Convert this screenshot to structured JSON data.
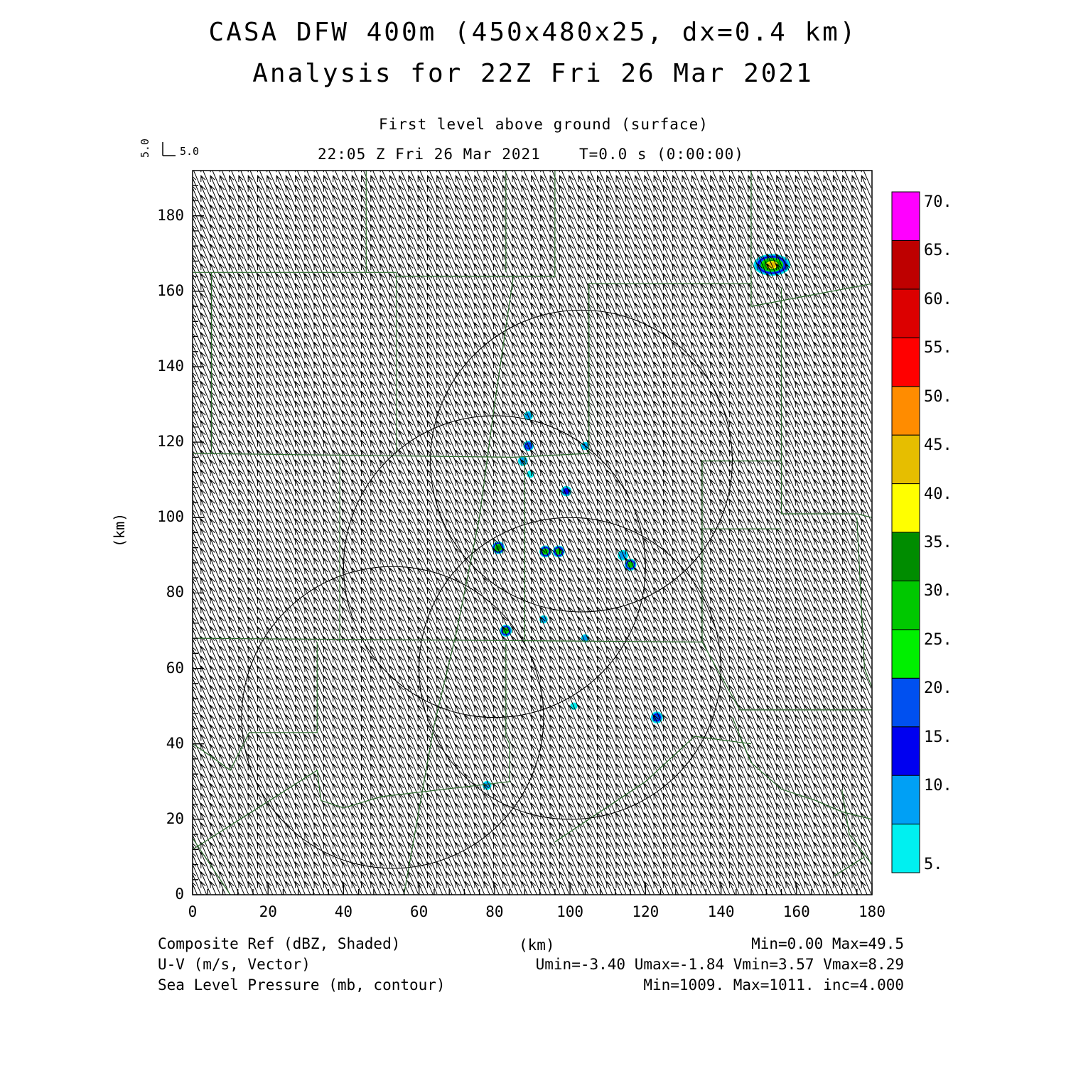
{
  "header": {
    "title_line1": "CASA DFW 400m (450x480x25, dx=0.4 km)",
    "title_line2": "Analysis for 22Z Fri 26 Mar 2021",
    "level": "First level above ground (surface)",
    "time": "22:05 Z Fri 26 Mar 2021",
    "tstep": "T=0.0 s (0:00:00)"
  },
  "vector_key": {
    "u": "5.0",
    "v": "5.0"
  },
  "axes": {
    "x_ticks": [
      "0",
      "20",
      "40",
      "60",
      "80",
      "100",
      "120",
      "140",
      "160",
      "180"
    ],
    "y_ticks": [
      "0",
      "20",
      "40",
      "60",
      "80",
      "100",
      "120",
      "140",
      "160",
      "180"
    ],
    "x_label": "(km)",
    "y_label": "(km)",
    "xlim": [
      0,
      180
    ],
    "ylim": [
      0,
      192
    ]
  },
  "colorbar": {
    "labels": [
      "5.",
      "10.",
      "15.",
      "20.",
      "25.",
      "30.",
      "35.",
      "40.",
      "45.",
      "50.",
      "55.",
      "60.",
      "65.",
      "70."
    ],
    "colors": [
      "#00f0f0",
      "#00a0f5",
      "#0000f0",
      "#0050f0",
      "#00f000",
      "#00c800",
      "#008c00",
      "#ffff00",
      "#e6be00",
      "#ff8c00",
      "#ff0000",
      "#dc0000",
      "#be0000",
      "#ff00ff"
    ]
  },
  "footer": {
    "left1": "Composite Ref (dBZ, Shaded)",
    "left2": "U-V (m/s, Vector)",
    "left3": "Sea Level Pressure (mb, contour)",
    "center1": "(km)",
    "right1": "Min=0.00 Max=49.5",
    "right2": "Umin=-3.40 Umax=-1.84 Vmin=3.57 Vmax=8.29",
    "right3": "Min=1009. Max=1011. inc=4.000"
  },
  "map_data": {
    "wind_u": -2.6,
    "wind_v": 6.0,
    "range_rings_km": [
      {
        "cx": 103,
        "cy": 115,
        "r": 40
      },
      {
        "cx": 80,
        "cy": 87,
        "r": 40
      },
      {
        "cx": 100,
        "cy": 60,
        "r": 40
      },
      {
        "cx": 53,
        "cy": 47,
        "r": 40
      }
    ],
    "echoes": [
      {
        "x": 153.5,
        "y": 167,
        "rx": 4.5,
        "ry": 2.5,
        "level": 45
      },
      {
        "x": 81,
        "y": 92,
        "r": 1.3,
        "level": 35
      },
      {
        "x": 83,
        "y": 70,
        "r": 1.2,
        "level": 30
      },
      {
        "x": 93.5,
        "y": 91,
        "r": 1.2,
        "level": 30
      },
      {
        "x": 97,
        "y": 91,
        "r": 1.2,
        "level": 30
      },
      {
        "x": 116,
        "y": 87.5,
        "r": 1.2,
        "level": 30
      },
      {
        "x": 114,
        "y": 90,
        "r": 1.0,
        "level": 10
      },
      {
        "x": 123,
        "y": 47,
        "r": 1.2,
        "level": 20
      },
      {
        "x": 89,
        "y": 119,
        "r": 1.0,
        "level": 20
      },
      {
        "x": 99,
        "y": 107,
        "r": 1.0,
        "level": 15
      },
      {
        "x": 87.5,
        "y": 115,
        "r": 0.9,
        "level": 10
      },
      {
        "x": 89,
        "y": 127,
        "r": 0.8,
        "level": 10
      },
      {
        "x": 89.5,
        "y": 111.5,
        "r": 0.6,
        "level": 5
      },
      {
        "x": 104,
        "y": 119,
        "r": 0.7,
        "level": 10
      },
      {
        "x": 93,
        "y": 73,
        "r": 0.7,
        "level": 10
      },
      {
        "x": 104,
        "y": 68,
        "r": 0.7,
        "level": 10
      },
      {
        "x": 101,
        "y": 50,
        "r": 0.6,
        "level": 5
      },
      {
        "x": 78,
        "y": 29,
        "r": 0.8,
        "level": 10
      }
    ],
    "county_lines": [
      [
        [
          0,
          165
        ],
        [
          54,
          165
        ]
      ],
      [
        [
          46,
          192
        ],
        [
          46,
          165
        ]
      ],
      [
        [
          54,
          165
        ],
        [
          54,
          117
        ]
      ],
      [
        [
          5,
          165
        ],
        [
          5,
          117
        ]
      ],
      [
        [
          0,
          117
        ],
        [
          85,
          116
        ]
      ],
      [
        [
          83,
          192
        ],
        [
          83,
          165
        ]
      ],
      [
        [
          54,
          164
        ],
        [
          96,
          164
        ]
      ],
      [
        [
          96,
          192
        ],
        [
          96,
          164
        ]
      ],
      [
        [
          85,
          164
        ],
        [
          80,
          130
        ],
        [
          76,
          100
        ],
        [
          70,
          70
        ],
        [
          64,
          45
        ],
        [
          56,
          0
        ]
      ],
      [
        [
          105,
          162
        ],
        [
          148,
          162
        ]
      ],
      [
        [
          105,
          162
        ],
        [
          105,
          117
        ],
        [
          85,
          116
        ]
      ],
      [
        [
          148,
          192
        ],
        [
          148,
          156
        ]
      ],
      [
        [
          148,
          156
        ],
        [
          180,
          162
        ]
      ],
      [
        [
          156,
          161
        ],
        [
          156,
          115
        ],
        [
          135,
          115
        ],
        [
          135,
          67
        ]
      ],
      [
        [
          156,
          115
        ],
        [
          156,
          101
        ],
        [
          176,
          101
        ],
        [
          180,
          100
        ]
      ],
      [
        [
          156,
          97
        ],
        [
          135,
          97
        ]
      ],
      [
        [
          88,
          116
        ],
        [
          88,
          67
        ]
      ],
      [
        [
          0,
          68
        ],
        [
          135,
          67
        ]
      ],
      [
        [
          39,
          117
        ],
        [
          39,
          67
        ]
      ],
      [
        [
          33,
          67
        ],
        [
          33,
          43
        ],
        [
          15,
          43
        ],
        [
          10,
          33
        ],
        [
          3,
          38
        ],
        [
          0,
          40
        ]
      ],
      [
        [
          83,
          67
        ],
        [
          83,
          42
        ],
        [
          84,
          40
        ],
        [
          84,
          30
        ],
        [
          50,
          26
        ],
        [
          40,
          23
        ],
        [
          34,
          25
        ],
        [
          33,
          33
        ],
        [
          0,
          12
        ]
      ],
      [
        [
          135,
          67
        ],
        [
          145,
          49
        ],
        [
          180,
          49
        ]
      ],
      [
        [
          143,
          47
        ],
        [
          148,
          35
        ],
        [
          156,
          28
        ],
        [
          165,
          25
        ],
        [
          172,
          22
        ],
        [
          180,
          20
        ]
      ],
      [
        [
          148,
          40
        ],
        [
          133,
          42
        ],
        [
          120,
          30
        ],
        [
          108,
          22
        ],
        [
          96,
          14
        ]
      ],
      [
        [
          172,
          28
        ],
        [
          174,
          16
        ],
        [
          180,
          8
        ]
      ],
      [
        [
          176,
          100
        ],
        [
          178,
          60
        ],
        [
          180,
          55
        ]
      ],
      [
        [
          170,
          5
        ],
        [
          178,
          10
        ]
      ],
      [
        [
          0,
          15
        ],
        [
          10,
          0
        ]
      ]
    ]
  }
}
